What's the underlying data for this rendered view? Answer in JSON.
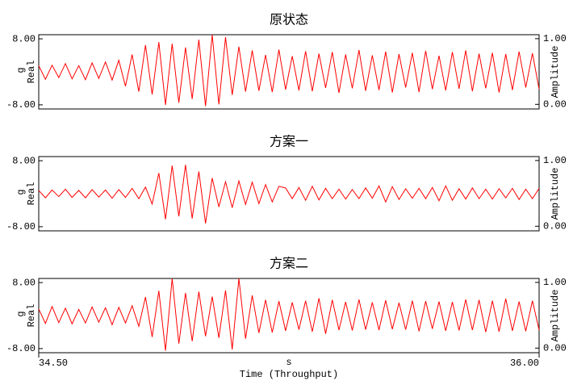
{
  "chart_data": [
    {
      "type": "line",
      "title": "原状态",
      "color": "#ff0000",
      "y_label": "Real",
      "y_unit": "g",
      "y2_label": "Amplitude",
      "ylim": [
        -9,
        9
      ],
      "yticks": [
        {
          "value": 8,
          "label": "8.00"
        },
        {
          "value": -8,
          "label": "-8.00"
        }
      ],
      "y2lim": [
        -0.07,
        1.06
      ],
      "y2ticks": [
        {
          "value": 1,
          "label": "1.00"
        },
        {
          "value": 0,
          "label": "0.00"
        }
      ],
      "xlim": [
        34.5,
        36.0
      ],
      "x": [
        34.5,
        34.52,
        34.54,
        34.56,
        34.58,
        34.6,
        34.62,
        34.64,
        34.66,
        34.68,
        34.7,
        34.72,
        34.74,
        34.76,
        34.78,
        34.8,
        34.82,
        34.84,
        34.86,
        34.88,
        34.9,
        34.92,
        34.94,
        34.96,
        34.98,
        35.0,
        35.02,
        35.04,
        35.06,
        35.08,
        35.1,
        35.12,
        35.14,
        35.16,
        35.18,
        35.2,
        35.22,
        35.24,
        35.26,
        35.28,
        35.3,
        35.32,
        35.34,
        35.36,
        35.38,
        35.4,
        35.42,
        35.44,
        35.46,
        35.48,
        35.5,
        35.52,
        35.54,
        35.56,
        35.58,
        35.6,
        35.62,
        35.64,
        35.66,
        35.68,
        35.7,
        35.72,
        35.74,
        35.76,
        35.78,
        35.8,
        35.82,
        35.84,
        35.86,
        35.88,
        35.9,
        35.92,
        35.94,
        35.96,
        35.98,
        36.0
      ],
      "values": [
        1.5,
        -1.8,
        1.6,
        -1.4,
        2.0,
        -1.7,
        1.5,
        -1.9,
        2.2,
        -1.6,
        2.4,
        -2.0,
        2.8,
        -3.5,
        4.2,
        -4.8,
        6.5,
        -5.5,
        7.2,
        -8.0,
        6.8,
        -7.5,
        5.9,
        -6.6,
        7.8,
        -8.3,
        9.0,
        -7.9,
        8.4,
        -5.6,
        6.1,
        -4.8,
        5.2,
        -4.6,
        4.1,
        -4.9,
        5.4,
        -4.3,
        3.8,
        -4.5,
        5.0,
        -4.7,
        4.4,
        -3.9,
        4.8,
        -5.1,
        4.2,
        -4.0,
        5.3,
        -4.6,
        4.0,
        -4.4,
        4.9,
        -5.0,
        4.3,
        -3.8,
        4.6,
        -4.9,
        5.1,
        -4.2,
        3.9,
        -4.5,
        4.8,
        -4.1,
        5.2,
        -4.7,
        4.4,
        -4.0,
        4.6,
        -5.0,
        4.3,
        -4.4,
        4.9,
        -3.8,
        4.5,
        -4.2
      ]
    },
    {
      "type": "line",
      "title": "方案一",
      "color": "#ff0000",
      "y_label": "Real",
      "y_unit": "g",
      "y2_label": "Amplitude",
      "ylim": [
        -9,
        9
      ],
      "yticks": [
        {
          "value": 8,
          "label": "8.00"
        },
        {
          "value": -8,
          "label": "-8.00"
        }
      ],
      "y2lim": [
        -0.07,
        1.06
      ],
      "y2ticks": [
        {
          "value": 1,
          "label": "1.00"
        },
        {
          "value": 0,
          "label": "0.00"
        }
      ],
      "xlim": [
        34.5,
        36.0
      ],
      "x": [
        34.5,
        34.52,
        34.54,
        34.56,
        34.58,
        34.6,
        34.62,
        34.64,
        34.66,
        34.68,
        34.7,
        34.72,
        34.74,
        34.76,
        34.78,
        34.8,
        34.82,
        34.84,
        34.86,
        34.88,
        34.9,
        34.92,
        34.94,
        34.96,
        34.98,
        35.0,
        35.02,
        35.04,
        35.06,
        35.08,
        35.1,
        35.12,
        35.14,
        35.16,
        35.18,
        35.2,
        35.22,
        35.24,
        35.26,
        35.28,
        35.3,
        35.32,
        35.34,
        35.36,
        35.38,
        35.4,
        35.42,
        35.44,
        35.46,
        35.48,
        35.5,
        35.52,
        35.54,
        35.56,
        35.58,
        35.6,
        35.62,
        35.64,
        35.66,
        35.68,
        35.7,
        35.72,
        35.74,
        35.76,
        35.78,
        35.8,
        35.82,
        35.84,
        35.86,
        35.88,
        35.9,
        35.92,
        35.94,
        35.96,
        35.98,
        36.0
      ],
      "values": [
        0.8,
        -1.0,
        0.9,
        -0.7,
        1.1,
        -0.9,
        0.8,
        -1.0,
        1.0,
        -0.8,
        0.9,
        -1.1,
        1.0,
        -0.9,
        1.3,
        -1.2,
        1.6,
        -2.5,
        5.0,
        -6.2,
        6.8,
        -5.5,
        7.0,
        -6.0,
        5.4,
        -7.2,
        3.8,
        -3.2,
        2.9,
        -3.4,
        3.1,
        -2.6,
        2.8,
        -2.4,
        2.2,
        -2.0,
        1.8,
        1.4,
        -1.2,
        1.5,
        -1.6,
        1.8,
        -1.5,
        1.3,
        -1.2,
        1.1,
        -1.3,
        1.0,
        -1.2,
        1.4,
        -1.1,
        1.9,
        -2.0,
        1.7,
        -1.4,
        1.2,
        -1.1,
        1.3,
        -1.2,
        1.5,
        -1.7,
        1.9,
        -1.6,
        1.2,
        -1.3,
        1.4,
        -1.2,
        1.1,
        -1.3,
        1.2,
        -1.0,
        1.3,
        -1.4,
        1.1,
        -1.2,
        1.3
      ]
    },
    {
      "type": "line",
      "title": "方案二",
      "color": "#ff0000",
      "y_label": "Real",
      "y_unit": "g",
      "y2_label": "Amplitude",
      "ylim": [
        -9,
        9
      ],
      "yticks": [
        {
          "value": 8,
          "label": "8.00"
        },
        {
          "value": -8,
          "label": "-8.00"
        }
      ],
      "y2lim": [
        -0.07,
        1.06
      ],
      "y2ticks": [
        {
          "value": 1,
          "label": "1.00"
        },
        {
          "value": 0,
          "label": "0.00"
        }
      ],
      "xlim": [
        34.5,
        36.0
      ],
      "xticks": [
        {
          "value": 34.5,
          "label": "34.50"
        },
        {
          "value": 36,
          "label": "36.00"
        }
      ],
      "x_unit": "s",
      "x_label": "Time (Throughput)",
      "x": [
        34.5,
        34.52,
        34.54,
        34.56,
        34.58,
        34.6,
        34.62,
        34.64,
        34.66,
        34.68,
        34.7,
        34.72,
        34.74,
        34.76,
        34.78,
        34.8,
        34.82,
        34.84,
        34.86,
        34.88,
        34.9,
        34.92,
        34.94,
        34.96,
        34.98,
        35.0,
        35.02,
        35.04,
        35.06,
        35.08,
        35.1,
        35.12,
        35.14,
        35.16,
        35.18,
        35.2,
        35.22,
        35.24,
        35.26,
        35.28,
        35.3,
        35.32,
        35.34,
        35.36,
        35.38,
        35.4,
        35.42,
        35.44,
        35.46,
        35.48,
        35.5,
        35.52,
        35.54,
        35.56,
        35.58,
        35.6,
        35.62,
        35.64,
        35.66,
        35.68,
        35.7,
        35.72,
        35.74,
        35.76,
        35.78,
        35.8,
        35.82,
        35.84,
        35.86,
        35.88,
        35.9,
        35.92,
        35.94,
        35.96,
        35.98,
        36.0
      ],
      "values": [
        1.6,
        -1.9,
        2.2,
        -1.7,
        1.8,
        -2.0,
        1.5,
        -1.8,
        2.1,
        -1.6,
        1.9,
        -2.2,
        2.0,
        -1.8,
        2.4,
        -2.6,
        4.5,
        -5.2,
        6.0,
        -8.5,
        9.0,
        -6.8,
        5.5,
        -6.2,
        5.8,
        -5.0,
        4.6,
        -5.4,
        6.1,
        -8.2,
        9.0,
        -5.6,
        4.9,
        -4.2,
        3.8,
        -4.1,
        3.5,
        -3.7,
        3.2,
        -3.4,
        3.6,
        -3.9,
        4.2,
        -4.4,
        3.8,
        -3.5,
        3.3,
        -3.6,
        3.9,
        -3.4,
        3.2,
        -3.5,
        3.7,
        -3.3,
        3.1,
        -3.4,
        3.6,
        -3.8,
        3.5,
        -3.2,
        3.4,
        -3.7,
        3.3,
        -3.6,
        3.9,
        -3.5,
        3.8,
        -4.0,
        3.6,
        -3.9,
        4.1,
        -3.7,
        3.4,
        -3.8,
        3.6,
        -3.5
      ]
    }
  ]
}
